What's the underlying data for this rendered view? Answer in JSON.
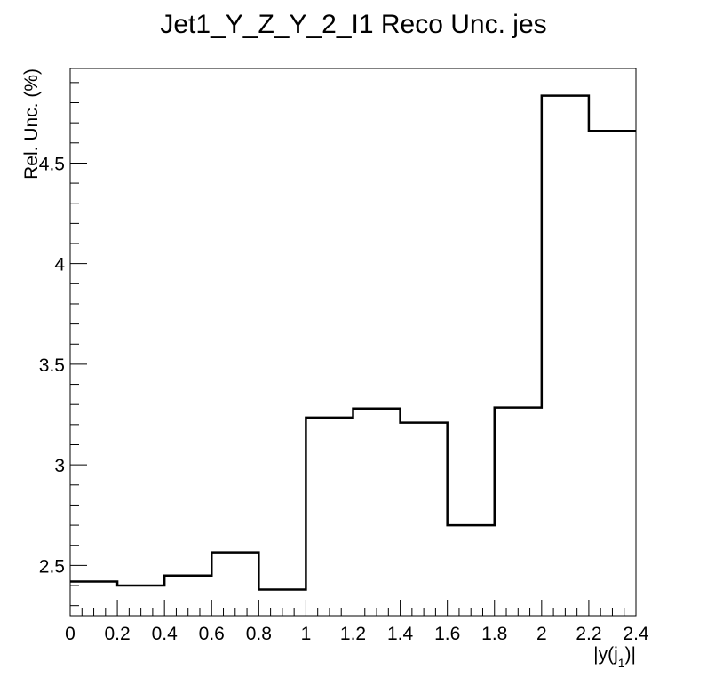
{
  "chart_data": {
    "type": "step",
    "title": "Jet1_Y_Z_Y_2_I1 Reco Unc. jes",
    "xlabel": "|y(j",
    "xlabel_sub": "1",
    "xlabel_end": ")|",
    "ylabel": "Rel. Unc. (%)",
    "bin_edges": [
      0,
      0.2,
      0.4,
      0.6,
      0.8,
      1.0,
      1.2,
      1.4,
      1.6,
      1.8,
      2.0,
      2.2,
      2.4
    ],
    "values": [
      2.42,
      2.4,
      2.45,
      2.565,
      2.38,
      3.235,
      3.28,
      3.21,
      2.7,
      3.285,
      4.835,
      4.66
    ],
    "xlim": [
      0,
      2.4
    ],
    "ylim": [
      2.25,
      4.97
    ],
    "x_ticks": [
      "0",
      "0.2",
      "0.4",
      "0.6",
      "0.8",
      "1",
      "1.2",
      "1.4",
      "1.6",
      "1.8",
      "2",
      "2.2",
      "2.4"
    ],
    "y_ticks": [
      "2.5",
      "3",
      "3.5",
      "4",
      "4.5"
    ],
    "grid": false,
    "line_color": "#000000"
  }
}
